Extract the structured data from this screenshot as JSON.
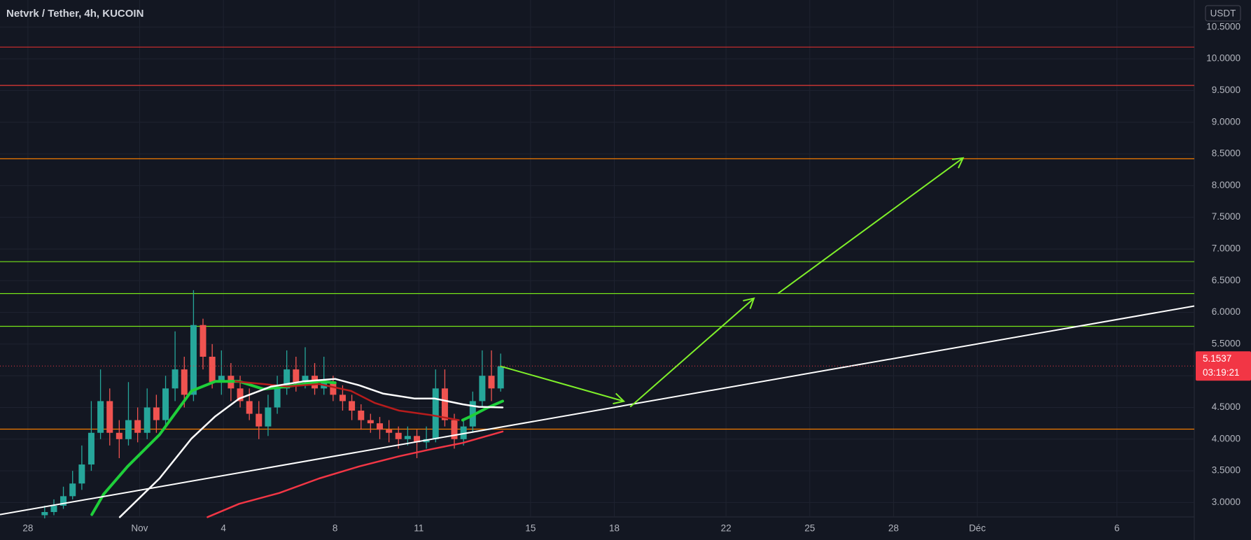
{
  "chart_data": {
    "type": "candlestick",
    "title": "Netvrk / Tether, 4h, KUCOIN",
    "currency": "USDT",
    "x": [
      0.6,
      0.93,
      1.27,
      1.6,
      1.93,
      2.27,
      2.6,
      2.93,
      3.27,
      3.6,
      3.93,
      4.27,
      4.6,
      4.93,
      5.27,
      5.6,
      5.93,
      6.27,
      6.6,
      6.93,
      7.27,
      7.6,
      7.93,
      8.27,
      8.6,
      8.93,
      9.27,
      9.6,
      9.93,
      10.27,
      10.6,
      10.93,
      11.27,
      11.6,
      11.93,
      12.27,
      12.6,
      12.93,
      13.27,
      13.6,
      13.93,
      14.27,
      14.6,
      14.93,
      15.27,
      15.6,
      15.93,
      16.27,
      16.6,
      16.93
    ],
    "open": [
      2.8,
      2.85,
      2.95,
      3.1,
      3.3,
      3.6,
      4.1,
      4.6,
      4.1,
      4.0,
      4.3,
      4.1,
      4.5,
      4.3,
      4.8,
      5.1,
      4.7,
      5.8,
      5.3,
      4.9,
      5.0,
      4.8,
      4.6,
      4.4,
      4.2,
      4.5,
      4.8,
      5.1,
      4.9,
      5.0,
      4.8,
      4.9,
      4.7,
      4.6,
      4.45,
      4.3,
      4.25,
      4.15,
      4.1,
      4.0,
      4.05,
      3.95,
      4.0,
      4.8,
      4.3,
      4.0,
      4.2,
      4.6,
      5.0,
      4.8
    ],
    "high": [
      2.95,
      3.05,
      3.25,
      3.5,
      3.9,
      4.6,
      5.1,
      4.8,
      4.3,
      4.9,
      4.5,
      4.8,
      4.7,
      5.0,
      5.7,
      5.3,
      6.35,
      5.9,
      5.5,
      5.4,
      5.2,
      5.0,
      4.8,
      4.6,
      4.7,
      5.0,
      5.4,
      5.3,
      5.45,
      5.2,
      5.3,
      5.0,
      4.85,
      4.7,
      4.55,
      4.4,
      4.35,
      4.3,
      4.2,
      4.2,
      4.15,
      4.2,
      5.1,
      5.1,
      4.4,
      4.3,
      4.75,
      5.4,
      5.4,
      5.35
    ],
    "low": [
      2.75,
      2.8,
      2.9,
      3.05,
      3.2,
      3.5,
      4.0,
      3.9,
      3.7,
      3.9,
      3.95,
      4.0,
      4.1,
      4.2,
      4.6,
      4.5,
      4.6,
      5.1,
      4.8,
      4.7,
      4.6,
      4.5,
      4.3,
      4.0,
      4.05,
      4.4,
      4.7,
      4.75,
      4.8,
      4.7,
      4.7,
      4.6,
      4.45,
      4.3,
      4.15,
      4.1,
      4.0,
      3.95,
      3.85,
      3.9,
      3.7,
      3.85,
      3.95,
      4.2,
      3.85,
      3.9,
      4.1,
      4.5,
      4.6,
      4.75
    ],
    "close": [
      2.85,
      2.95,
      3.1,
      3.3,
      3.6,
      4.1,
      4.6,
      4.1,
      4.0,
      4.3,
      4.1,
      4.5,
      4.3,
      4.8,
      5.1,
      4.7,
      5.8,
      5.3,
      4.9,
      5.0,
      4.8,
      4.6,
      4.4,
      4.2,
      4.5,
      4.8,
      5.1,
      4.9,
      5.0,
      4.8,
      4.9,
      4.7,
      4.6,
      4.45,
      4.3,
      4.25,
      4.15,
      4.1,
      4.0,
      4.05,
      3.95,
      4.0,
      4.8,
      4.3,
      4.0,
      4.2,
      4.6,
      5.0,
      4.8,
      5.15
    ],
    "up_color": "#26a69a",
    "down_color": "#ef5350",
    "xlim": [
      -1,
      41.77
    ],
    "ylim": [
      2.773,
      10.928
    ],
    "xticks": [
      {
        "value": 0,
        "label": "28"
      },
      {
        "value": 4,
        "label": "Nov"
      },
      {
        "value": 7,
        "label": "4"
      },
      {
        "value": 11,
        "label": "8"
      },
      {
        "value": 14,
        "label": "11"
      },
      {
        "value": 18,
        "label": "15"
      },
      {
        "value": 21,
        "label": "18"
      },
      {
        "value": 25,
        "label": "22"
      },
      {
        "value": 28,
        "label": "25"
      },
      {
        "value": 31,
        "label": "28"
      },
      {
        "value": 34,
        "label": "Déc"
      },
      {
        "value": 39,
        "label": "6"
      }
    ],
    "yticks": [
      {
        "value": 3.0,
        "label": "3.0000"
      },
      {
        "value": 3.5,
        "label": "3.5000"
      },
      {
        "value": 4.0,
        "label": "4.0000"
      },
      {
        "value": 4.5,
        "label": "4.5000"
      },
      {
        "value": 5.0,
        "label": "5.0000"
      },
      {
        "value": 5.5,
        "label": "5.5000"
      },
      {
        "value": 6.0,
        "label": "6.0000"
      },
      {
        "value": 6.5,
        "label": "6.5000"
      },
      {
        "value": 7.0,
        "label": "7.0000"
      },
      {
        "value": 7.5,
        "label": "7.5000"
      },
      {
        "value": 8.0,
        "label": "8.0000"
      },
      {
        "value": 8.5,
        "label": "8.5000"
      },
      {
        "value": 9.0,
        "label": "9.0000"
      },
      {
        "value": 9.5,
        "label": "9.5000"
      },
      {
        "value": 10.0,
        "label": "10.0000"
      },
      {
        "value": 10.5,
        "label": "10.5000"
      }
    ],
    "grid": true,
    "last_price": 5.1537,
    "countdown": "03:19:21",
    "last_price_color": "#f23645",
    "levels": [
      {
        "value": 10.185,
        "color": "#d32f2f"
      },
      {
        "value": 9.58,
        "color": "#e53935"
      },
      {
        "value": 8.424,
        "color": "#f57c00"
      },
      {
        "value": 6.8,
        "color": "#76e619"
      },
      {
        "value": 6.297,
        "color": "#76e619"
      },
      {
        "value": 5.78,
        "color": "#76e619"
      },
      {
        "value": 4.158,
        "color": "#f57c00"
      }
    ],
    "moving_averages": [
      {
        "color": "#1fcf3a",
        "x": [
          2.29,
          2.71,
          3.57,
          4.71,
          5.86,
          6.71,
          7.57,
          8.43,
          9.29,
          10.43,
          11.0,
          null,
          15.57,
          15.86,
          16.43,
          17.0
        ],
        "values": [
          2.81,
          3.13,
          3.57,
          4.07,
          4.76,
          4.91,
          4.91,
          4.79,
          4.83,
          4.91,
          4.89,
          null,
          4.3,
          4.36,
          4.49,
          4.6
        ]
      },
      {
        "color": "#b71c1c",
        "x": [
          7.43,
          8.43,
          9.29,
          10.43,
          11.57,
          12.43,
          13.29,
          14.43,
          15.43
        ],
        "values": [
          4.91,
          4.87,
          4.83,
          4.87,
          4.76,
          4.57,
          4.45,
          4.38,
          4.3
        ]
      },
      {
        "color": "#ffffff",
        "x": [
          3.29,
          4.71,
          5.86,
          6.71,
          7.57,
          8.71,
          9.86,
          11.0,
          11.86,
          12.71,
          13.86,
          14.57,
          15.57,
          16.14,
          17.0
        ],
        "values": [
          2.77,
          3.38,
          4.01,
          4.36,
          4.64,
          4.83,
          4.91,
          4.95,
          4.85,
          4.72,
          4.64,
          4.64,
          4.55,
          4.51,
          4.5
        ]
      },
      {
        "color": "#f23645",
        "x": [
          6.43,
          7.57,
          9.0,
          10.43,
          11.86,
          13.29,
          14.43,
          15.57,
          17.0
        ],
        "values": [
          2.77,
          2.98,
          3.15,
          3.38,
          3.57,
          3.73,
          3.84,
          3.94,
          4.12
        ]
      }
    ],
    "drawings": [
      {
        "kind": "line",
        "color": "#ffffff",
        "x": [
          -1,
          41.77
        ],
        "values": [
          2.81,
          6.1
        ]
      },
      {
        "kind": "arrow",
        "color": "#7ff02a",
        "x": [
          16.91,
          21.34
        ],
        "values": [
          5.152,
          4.598
        ]
      },
      {
        "kind": "arrow",
        "color": "#7ff02a",
        "x": [
          21.57,
          26.0
        ],
        "values": [
          4.51,
          6.222
        ]
      },
      {
        "kind": "arrow",
        "color": "#7ff02a",
        "x": [
          26.86,
          33.49
        ],
        "values": [
          6.297,
          8.436
        ]
      }
    ]
  }
}
